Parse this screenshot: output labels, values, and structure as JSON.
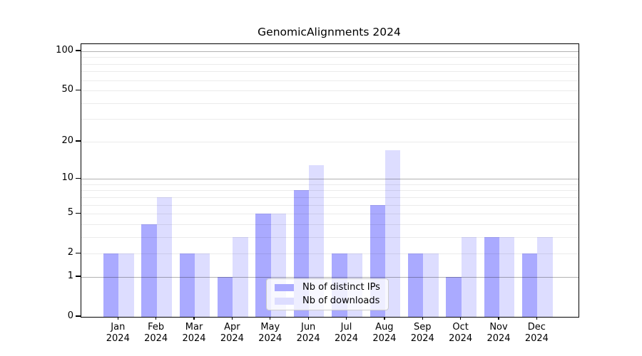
{
  "title": "GenomicAlignments 2024",
  "chart_data": {
    "type": "bar",
    "title": "GenomicAlignments 2024",
    "categories": [
      "Jan 2024",
      "Feb 2024",
      "Mar 2024",
      "Apr 2024",
      "May 2024",
      "Jun 2024",
      "Jul 2024",
      "Aug 2024",
      "Sep 2024",
      "Oct 2024",
      "Nov 2024",
      "Dec 2024"
    ],
    "series": [
      {
        "name": "Nb of distinct IPs",
        "color": "#aaaaff",
        "values": [
          2,
          4,
          2,
          1,
          5,
          8,
          2,
          6,
          2,
          1,
          3,
          2
        ]
      },
      {
        "name": "Nb of downloads",
        "color": "#ddddff",
        "values": [
          2,
          7,
          2,
          3,
          5,
          13,
          2,
          17,
          2,
          3,
          3,
          3
        ]
      }
    ],
    "xlabel": "",
    "ylabel": "",
    "yscale": "log1p",
    "ylim": [
      0,
      113
    ],
    "yticks": [
      0,
      1,
      2,
      5,
      10,
      20,
      50,
      100
    ],
    "grid": {
      "major": [
        1,
        10,
        100
      ],
      "minor": [
        2,
        3,
        4,
        5,
        6,
        7,
        8,
        9,
        20,
        30,
        40,
        50,
        60,
        70,
        80,
        90
      ]
    },
    "legend_position": "lower center"
  },
  "legend": {
    "items": [
      {
        "label": "Nb of distinct IPs",
        "color": "#aaaaff"
      },
      {
        "label": "Nb of downloads",
        "color": "#ddddff"
      }
    ]
  }
}
